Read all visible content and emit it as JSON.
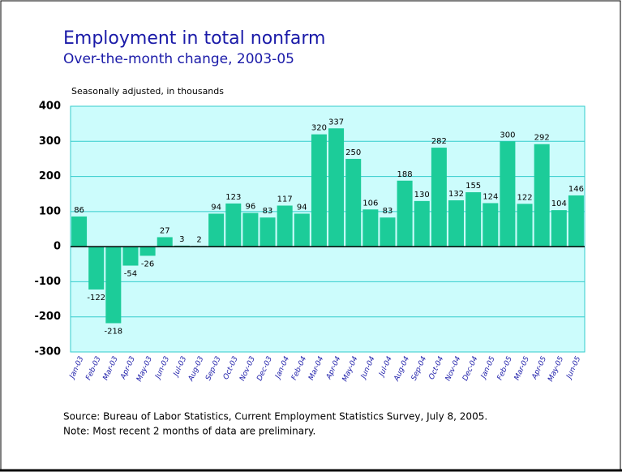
{
  "chart_data": {
    "type": "bar",
    "title": "Employment in total nonfarm",
    "subtitle": "Over-the-month change, 2003-05",
    "y_label": "Seasonally adjusted, in thousands",
    "categories": [
      "Jan-03",
      "Feb-03",
      "Mar-03",
      "Apr-03",
      "May-03",
      "Jun-03",
      "Jul-03",
      "Aug-03",
      "Sep-03",
      "Oct-03",
      "Nov-03",
      "Dec-03",
      "Jan-04",
      "Feb-04",
      "Mar-04",
      "Apr-04",
      "May-04",
      "Jun-04",
      "Jul-04",
      "Aug-04",
      "Sep-04",
      "Oct-04",
      "Nov-04",
      "Dec-04",
      "Jan-05",
      "Feb-05",
      "Mar-05",
      "Apr-05",
      "May-05",
      "Jun-05"
    ],
    "values": [
      86,
      -122,
      -218,
      -54,
      -26,
      27,
      3,
      2,
      94,
      123,
      96,
      83,
      117,
      94,
      320,
      337,
      250,
      106,
      83,
      188,
      130,
      282,
      132,
      155,
      124,
      300,
      122,
      292,
      104,
      146
    ],
    "color": "#1ccc99",
    "ylim": [
      -300,
      400
    ],
    "yticks": [
      -300,
      -200,
      -100,
      0,
      100,
      200,
      300,
      400
    ],
    "grid": true,
    "source": "Source:  Bureau of Labor Statistics, Current Employment Statistics Survey, July 8, 2005.",
    "note": "Note:  Most recent 2 months of data are preliminary."
  }
}
